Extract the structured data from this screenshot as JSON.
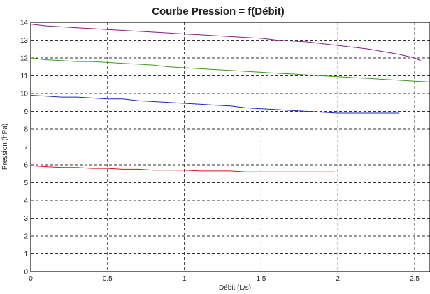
{
  "chart_data": {
    "type": "line",
    "title": "Courbe Pression = f(Débit)",
    "xlabel": "Débit (L/s)",
    "ylabel": "Pression (hPa)",
    "xlim": [
      0,
      2.6
    ],
    "ylim": [
      0,
      14
    ],
    "x_ticks": [
      "0",
      "0.5",
      "1",
      "1.5",
      "2",
      "2.5"
    ],
    "y_ticks": [
      "0",
      "1",
      "2",
      "3",
      "4",
      "5",
      "6",
      "7",
      "8",
      "9",
      "10",
      "11",
      "12",
      "13",
      "14"
    ],
    "grid": true,
    "legend": "none",
    "series": [
      {
        "color": "#8a1a8a",
        "x": [
          0.0,
          0.1,
          0.2,
          0.3,
          0.4,
          0.5,
          0.6,
          0.7,
          0.8,
          0.9,
          1.0,
          1.1,
          1.2,
          1.3,
          1.4,
          1.5,
          1.6,
          1.7,
          1.8,
          1.9,
          2.0,
          2.1,
          2.2,
          2.3,
          2.4,
          2.5,
          2.55
        ],
        "y": [
          13.9,
          13.8,
          13.75,
          13.7,
          13.65,
          13.6,
          13.55,
          13.5,
          13.45,
          13.4,
          13.35,
          13.3,
          13.25,
          13.2,
          13.15,
          13.1,
          13.0,
          12.95,
          12.9,
          12.8,
          12.7,
          12.6,
          12.5,
          12.35,
          12.2,
          12.0,
          11.8
        ]
      },
      {
        "color": "#3a9a1a",
        "x": [
          0.0,
          0.1,
          0.2,
          0.3,
          0.4,
          0.5,
          0.6,
          0.7,
          0.8,
          0.9,
          1.0,
          1.1,
          1.2,
          1.3,
          1.4,
          1.5,
          1.6,
          1.7,
          1.8,
          1.9,
          2.0,
          2.1,
          2.2,
          2.3,
          2.4,
          2.5,
          2.6
        ],
        "y": [
          12.0,
          11.9,
          11.85,
          11.8,
          11.8,
          11.75,
          11.7,
          11.65,
          11.6,
          11.5,
          11.45,
          11.4,
          11.35,
          11.3,
          11.25,
          11.2,
          11.15,
          11.1,
          11.05,
          11.0,
          10.95,
          10.9,
          10.85,
          10.8,
          10.75,
          10.7,
          10.65
        ]
      },
      {
        "color": "#1a2ab8",
        "x": [
          0.0,
          0.1,
          0.2,
          0.3,
          0.4,
          0.5,
          0.6,
          0.7,
          0.8,
          0.9,
          1.0,
          1.1,
          1.2,
          1.3,
          1.4,
          1.5,
          1.6,
          1.7,
          1.8,
          1.9,
          2.0,
          2.1,
          2.2,
          2.3,
          2.4
        ],
        "y": [
          9.9,
          9.85,
          9.8,
          9.8,
          9.75,
          9.7,
          9.7,
          9.6,
          9.55,
          9.5,
          9.45,
          9.4,
          9.35,
          9.3,
          9.2,
          9.15,
          9.1,
          9.05,
          9.0,
          8.95,
          8.9,
          8.9,
          8.9,
          8.9,
          8.9
        ]
      },
      {
        "color": "#d01818",
        "x": [
          0.0,
          0.1,
          0.2,
          0.3,
          0.4,
          0.5,
          0.6,
          0.7,
          0.8,
          0.9,
          1.0,
          1.1,
          1.2,
          1.3,
          1.4,
          1.5,
          1.6,
          1.7,
          1.8,
          1.9,
          1.98
        ],
        "y": [
          5.95,
          5.9,
          5.85,
          5.85,
          5.8,
          5.8,
          5.75,
          5.75,
          5.7,
          5.7,
          5.7,
          5.65,
          5.65,
          5.65,
          5.6,
          5.6,
          5.6,
          5.6,
          5.6,
          5.6,
          5.6
        ]
      }
    ]
  }
}
